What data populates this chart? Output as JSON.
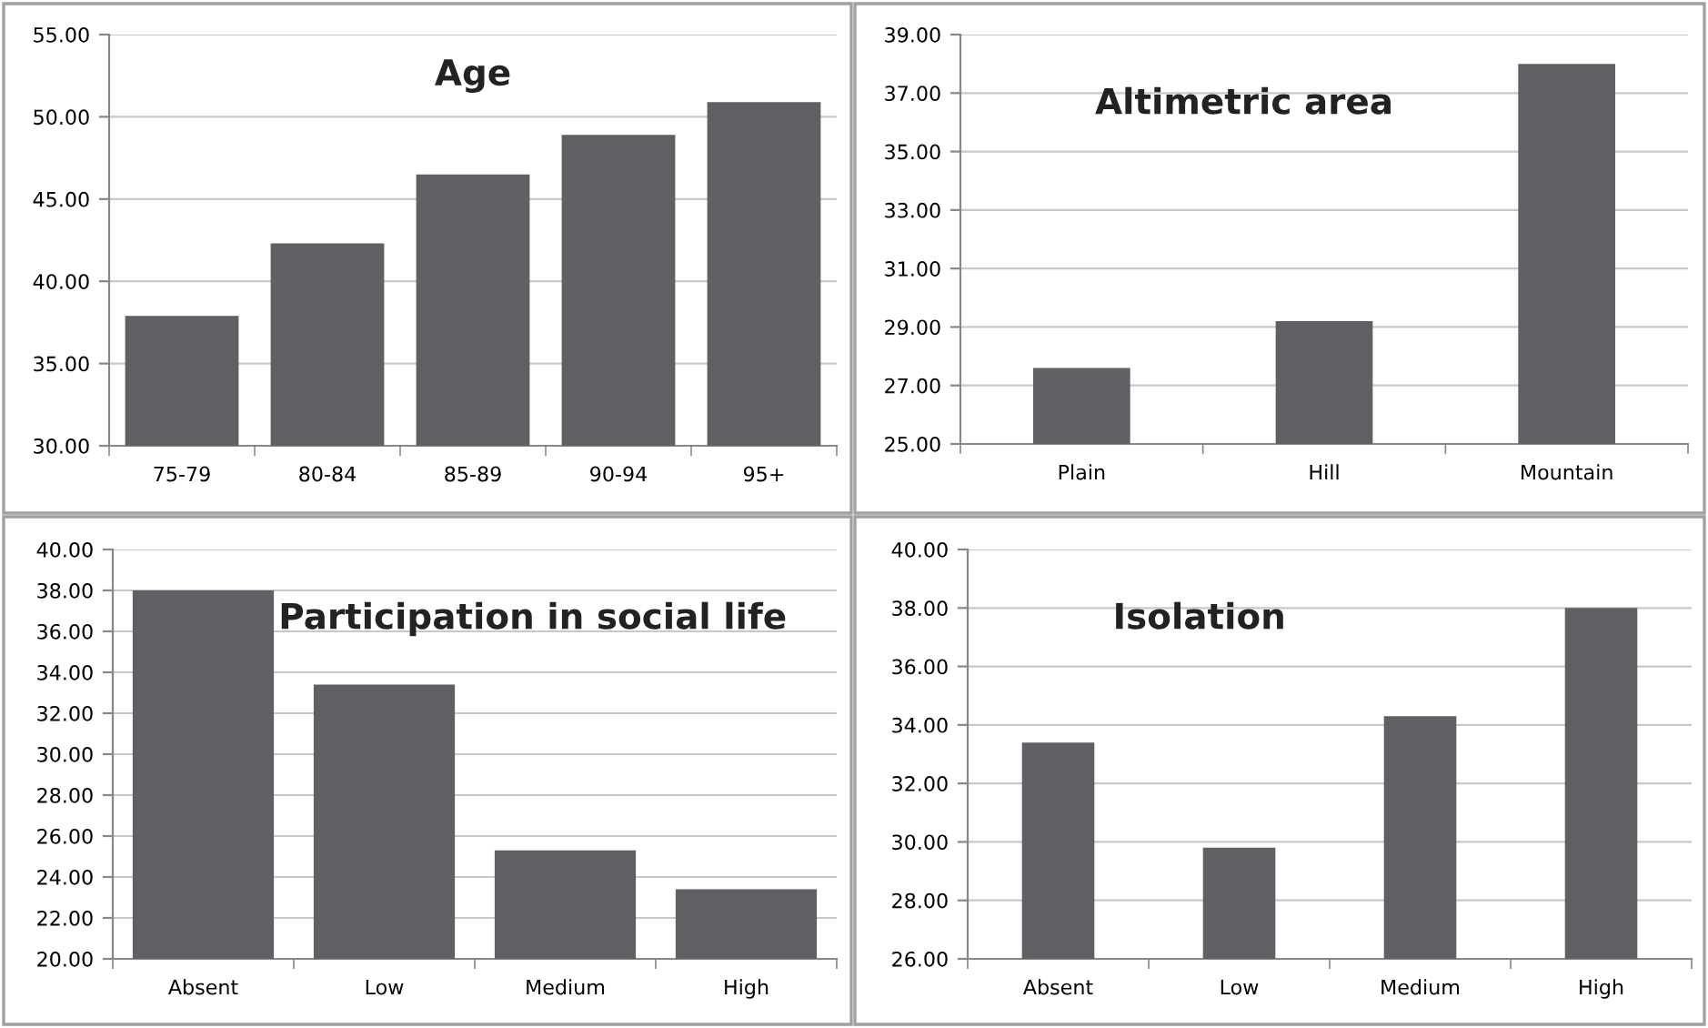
{
  "chart_data": [
    {
      "type": "bar",
      "title": "Age",
      "categories": [
        "75-79",
        "80-84",
        "85-89",
        "90-94",
        "95+"
      ],
      "values": [
        37.9,
        42.3,
        46.5,
        48.9,
        50.9
      ],
      "color": "#5f6064",
      "ylim": [
        30,
        55
      ],
      "yticks": [
        {
          "value": 30,
          "label": "30.00"
        },
        {
          "value": 35,
          "label": "35.00"
        },
        {
          "value": 40,
          "label": "40.00"
        },
        {
          "value": 45,
          "label": "45.00"
        },
        {
          "value": 50,
          "label": "50.00"
        },
        {
          "value": 55,
          "label": "55.00"
        }
      ],
      "grid": "y"
    },
    {
      "type": "bar",
      "title": "Altimetric area",
      "categories": [
        "Plain",
        "Hill",
        "Mountain"
      ],
      "values": [
        27.6,
        29.2,
        38.0
      ],
      "color": "#5f6064",
      "ylim": [
        25,
        39
      ],
      "yticks": [
        {
          "value": 25,
          "label": "25.00"
        },
        {
          "value": 27,
          "label": "27.00"
        },
        {
          "value": 29,
          "label": "29.00"
        },
        {
          "value": 31,
          "label": "31.00"
        },
        {
          "value": 33,
          "label": "33.00"
        },
        {
          "value": 35,
          "label": "35.00"
        },
        {
          "value": 37,
          "label": "37.00"
        },
        {
          "value": 39,
          "label": "39.00"
        }
      ],
      "grid": "y"
    },
    {
      "type": "bar",
      "title": "Participation in social life",
      "categories": [
        "Absent",
        "Low",
        "Medium",
        "High"
      ],
      "values": [
        38.0,
        33.4,
        25.3,
        23.4
      ],
      "color": "#5f6064",
      "ylim": [
        20,
        40
      ],
      "yticks": [
        {
          "value": 20,
          "label": "20.00"
        },
        {
          "value": 22,
          "label": "22.00"
        },
        {
          "value": 24,
          "label": "24.00"
        },
        {
          "value": 26,
          "label": "26.00"
        },
        {
          "value": 28,
          "label": "28.00"
        },
        {
          "value": 30,
          "label": "30.00"
        },
        {
          "value": 32,
          "label": "32.00"
        },
        {
          "value": 34,
          "label": "34.00"
        },
        {
          "value": 36,
          "label": "36.00"
        },
        {
          "value": 38,
          "label": "38.00"
        },
        {
          "value": 40,
          "label": "40.00"
        }
      ],
      "grid": "y"
    },
    {
      "type": "bar",
      "title": "Isolation",
      "categories": [
        "Absent",
        "Low",
        "Medium",
        "High"
      ],
      "values": [
        33.4,
        29.8,
        34.3,
        38.0
      ],
      "color": "#5f6064",
      "ylim": [
        26,
        40
      ],
      "yticks": [
        {
          "value": 26,
          "label": "26.00"
        },
        {
          "value": 28,
          "label": "28.00"
        },
        {
          "value": 30,
          "label": "30.00"
        },
        {
          "value": 32,
          "label": "32.00"
        },
        {
          "value": 34,
          "label": "34.00"
        },
        {
          "value": 36,
          "label": "36.00"
        },
        {
          "value": 38,
          "label": "38.00"
        },
        {
          "value": 40,
          "label": "40.00"
        }
      ],
      "grid": "y"
    }
  ]
}
